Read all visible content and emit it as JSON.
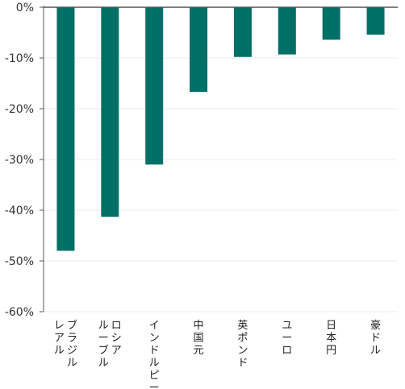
{
  "chart_data": {
    "type": "bar",
    "title": "",
    "xlabel": "",
    "ylabel": "",
    "categories": [
      [
        "ブラジル",
        "レアル"
      ],
      [
        "ロシア",
        "ルーブル"
      ],
      [
        "インドルピー"
      ],
      [
        "中国元"
      ],
      [
        "英ポンド"
      ],
      [
        "ユーロ"
      ],
      [
        "日本円"
      ],
      [
        "豪ドル"
      ]
    ],
    "values": [
      -48,
      -41.3,
      -31,
      -16.7,
      -9.8,
      -9.3,
      -6.4,
      -5.4
    ],
    "ylim": [
      -60,
      0
    ],
    "yticks": [
      0,
      -10,
      -20,
      -30,
      -40,
      -50,
      -60
    ],
    "ytick_labels": [
      "0%",
      "-10%",
      "-20%",
      "-30%",
      "-40%",
      "-50%",
      "-60%"
    ],
    "grid": true,
    "bar_color": "#006f66"
  }
}
